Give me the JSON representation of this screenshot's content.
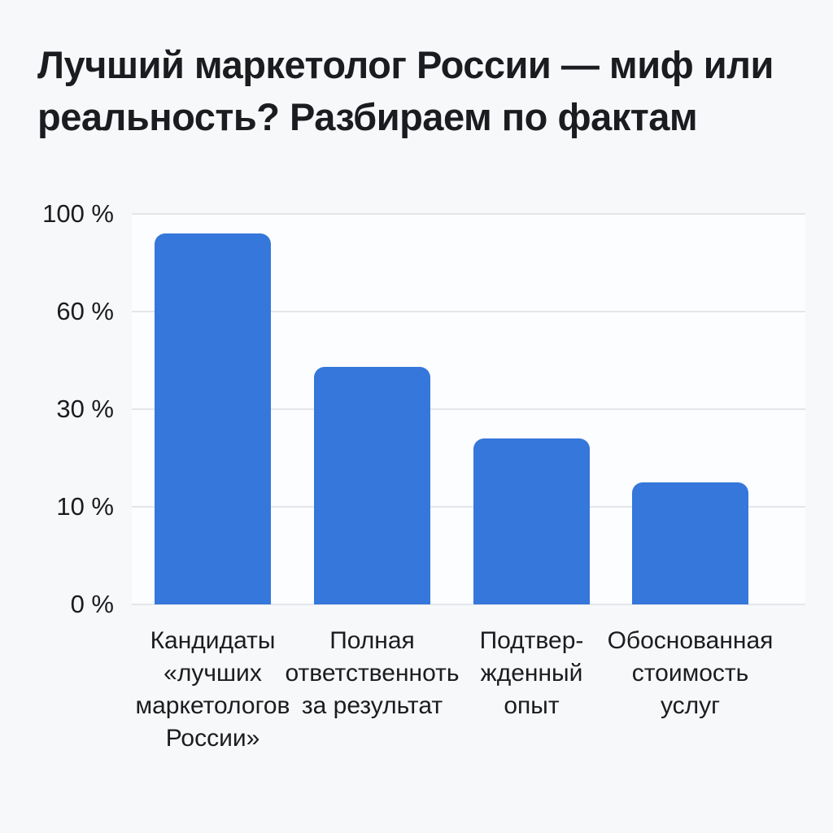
{
  "title": {
    "text": "Лучший маркетолог России — миф или\nреальность? Разбираем по фактам"
  },
  "chart_data": {
    "type": "bar",
    "title": "Лучший маркетолог России — миф или реальность? Разбираем по фактам",
    "categories": [
      "Кандидаты «лучших маркетологов России»",
      "Полная ответственноть за результат",
      "Подтвер-жденный опыт",
      "Обоснованная стоимость услуг"
    ],
    "category_label_lines": [
      "Кандидаты\n«лучших\nмаркетологов\nРоссии»",
      "Полная\nответственноть\nза результат",
      "Подтвер-\nжденный\nопыт",
      "Обоснованная\nстоимость\nуслуг"
    ],
    "values": [
      92,
      43,
      24,
      15
    ],
    "unit": "%",
    "xlabel": "",
    "ylabel": "",
    "y_axis": {
      "range": [
        0,
        100
      ],
      "ticks": [
        0,
        10,
        30,
        60,
        100
      ],
      "tick_labels": [
        "0 %",
        "10 %",
        "30 %",
        "60 %",
        "100 %"
      ],
      "scale_note": "ticks are evenly spaced on screen (non-linear value scale)"
    },
    "grid": true,
    "legend": null,
    "colors": {
      "bar": "#3577DB",
      "grid": "#E3E6EA",
      "text": "#1B1C1F",
      "background": "#F7F8FA",
      "plot_background": "#FCFDFE"
    }
  }
}
